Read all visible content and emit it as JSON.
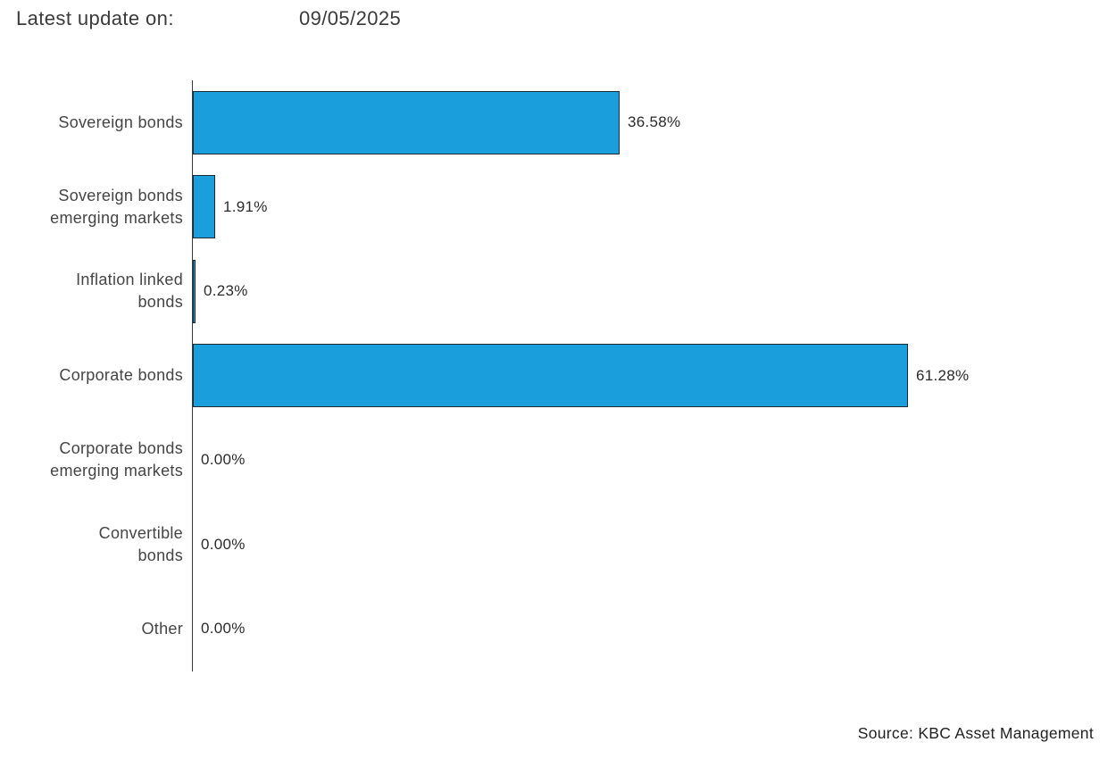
{
  "header": {
    "label": "Latest update on:",
    "date": "09/05/2025"
  },
  "footer": {
    "source": "Source: KBC Asset Management"
  },
  "colors": {
    "bar_fill": "#1a9fdc",
    "bar_border": "#1b2a33",
    "axis": "#3a3a3a",
    "label_text": "#454545",
    "value_text": "#2b2b2b"
  },
  "chart_data": {
    "type": "bar",
    "orientation": "horizontal",
    "title": "",
    "xlabel": "",
    "ylabel": "",
    "xlim": [
      0,
      76.8
    ],
    "grid": false,
    "legend": false,
    "categories": [
      "Sovereign bonds",
      "Sovereign bonds emerging markets",
      "Inflation linked bonds",
      "Corporate bonds",
      "Corporate bonds emerging markets",
      "Convertible bonds",
      "Other"
    ],
    "category_lines": [
      [
        "Sovereign bonds"
      ],
      [
        "Sovereign bonds",
        "emerging markets"
      ],
      [
        "Inflation linked",
        "bonds"
      ],
      [
        "Corporate bonds"
      ],
      [
        "Corporate bonds",
        "emerging markets"
      ],
      [
        "Convertible",
        "bonds"
      ],
      [
        "Other"
      ]
    ],
    "values": [
      36.58,
      1.91,
      0.23,
      61.28,
      0.0,
      0.0,
      0.0
    ],
    "value_labels": [
      "36.58%",
      "1.91%",
      "0.23%",
      "61.28%",
      "0.00%",
      "0.00%",
      "0.00%"
    ]
  }
}
